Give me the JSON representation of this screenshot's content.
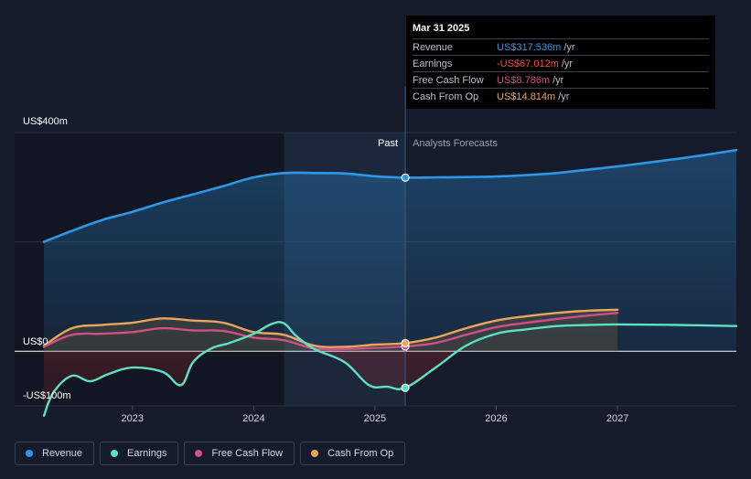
{
  "chart_data": {
    "type": "line",
    "y_labels": {
      "top": "US$400m",
      "zero": "US$0",
      "bottom": "-US$100m"
    },
    "ylim": [
      -100,
      400
    ],
    "xlim": [
      2022.27,
      2027.98
    ],
    "x_ticks": [
      {
        "label": "2023",
        "value": 2023.0
      },
      {
        "label": "2024",
        "value": 2024.0
      },
      {
        "label": "2025",
        "value": 2025.0
      },
      {
        "label": "2026",
        "value": 2026.0
      },
      {
        "label": "2027",
        "value": 2027.0
      }
    ],
    "sections": {
      "past": "Past",
      "forecast": "Analysts Forecasts"
    },
    "divider_x": 2025.25,
    "highlight_start_x": 2024.25,
    "grid": true,
    "series": [
      {
        "name": "Revenue",
        "key": "revenue",
        "color": "#2f97e6",
        "x": [
          2022.27,
          2022.5,
          2022.75,
          2023.0,
          2023.25,
          2023.5,
          2023.75,
          2024.0,
          2024.25,
          2024.5,
          2024.75,
          2025.0,
          2025.25,
          2025.5,
          2025.75,
          2026.0,
          2026.25,
          2026.5,
          2026.75,
          2027.0,
          2027.25,
          2027.5,
          2027.75,
          2027.98
        ],
        "y": [
          200,
          220,
          240,
          255,
          272,
          287,
          302,
          318,
          326,
          326,
          325,
          320,
          317.5,
          318,
          318.5,
          319.5,
          322,
          326,
          332,
          338,
          345,
          352,
          360,
          368
        ]
      },
      {
        "name": "Earnings",
        "key": "earnings",
        "color": "#5de0c4",
        "x": [
          2022.27,
          2022.35,
          2022.5,
          2022.65,
          2022.8,
          2023.0,
          2023.25,
          2023.4,
          2023.5,
          2023.65,
          2023.8,
          2024.0,
          2024.15,
          2024.25,
          2024.35,
          2024.5,
          2024.75,
          2024.95,
          2025.1,
          2025.25,
          2025.5,
          2025.75,
          2026.0,
          2026.25,
          2026.5,
          2026.75,
          2027.0,
          2027.5,
          2027.98
        ],
        "y": [
          -118,
          -75,
          -45,
          -55,
          -42,
          -30,
          -38,
          -62,
          -20,
          5,
          15,
          32,
          50,
          51,
          28,
          4,
          -20,
          -62,
          -65,
          -67,
          -30,
          10,
          32,
          40,
          46,
          48,
          49,
          48,
          46
        ]
      },
      {
        "name": "Free Cash Flow",
        "key": "fcf",
        "color": "#cf4f86",
        "x": [
          2022.27,
          2022.5,
          2022.75,
          2023.0,
          2023.25,
          2023.5,
          2023.75,
          2024.0,
          2024.25,
          2024.5,
          2024.75,
          2025.0,
          2025.25,
          2025.5,
          2025.75,
          2026.0,
          2026.25,
          2026.5,
          2026.75,
          2027.0
        ],
        "y": [
          8,
          30,
          32,
          35,
          42,
          38,
          37,
          25,
          20,
          5,
          4,
          6,
          8.8,
          15,
          30,
          44,
          52,
          59,
          65,
          70
        ]
      },
      {
        "name": "Cash From Op",
        "key": "cfo",
        "color": "#e9a55c",
        "x": [
          2022.27,
          2022.5,
          2022.75,
          2023.0,
          2023.25,
          2023.5,
          2023.75,
          2024.0,
          2024.25,
          2024.5,
          2024.75,
          2025.0,
          2025.25,
          2025.5,
          2025.75,
          2026.0,
          2026.25,
          2026.5,
          2026.75,
          2027.0
        ],
        "y": [
          10,
          42,
          48,
          52,
          60,
          56,
          52,
          35,
          30,
          10,
          8,
          12,
          14.8,
          25,
          42,
          56,
          64,
          70,
          74,
          76
        ]
      }
    ],
    "markers": [
      {
        "series": "revenue",
        "x": 2025.25,
        "y": 317.5,
        "color": "#2f97e6"
      },
      {
        "series": "earnings",
        "x": 2025.25,
        "y": -67,
        "color": "#5de0c4"
      },
      {
        "series": "fcf",
        "x": 2025.25,
        "y": 8.8,
        "color": "#cf4f86"
      },
      {
        "series": "cfo",
        "x": 2025.25,
        "y": 14.8,
        "color": "#e9a55c"
      }
    ]
  },
  "tooltip": {
    "date": "Mar 31 2025",
    "rows": [
      {
        "label": "Revenue",
        "value": "US$317.536m",
        "unit": "/yr",
        "color": "#2f97e6"
      },
      {
        "label": "Earnings",
        "value": "-US$67.012m",
        "unit": "/yr",
        "color": "#ef4a4a"
      },
      {
        "label": "Free Cash Flow",
        "value": "US$8.786m",
        "unit": "/yr",
        "color": "#cf4f86"
      },
      {
        "label": "Cash From Op",
        "value": "US$14.814m",
        "unit": "/yr",
        "color": "#e9a55c"
      }
    ]
  },
  "legend": [
    {
      "label": "Revenue",
      "color": "#2f97e6"
    },
    {
      "label": "Earnings",
      "color": "#5de0c4"
    },
    {
      "label": "Free Cash Flow",
      "color": "#cf4f86"
    },
    {
      "label": "Cash From Op",
      "color": "#e9a55c"
    }
  ]
}
